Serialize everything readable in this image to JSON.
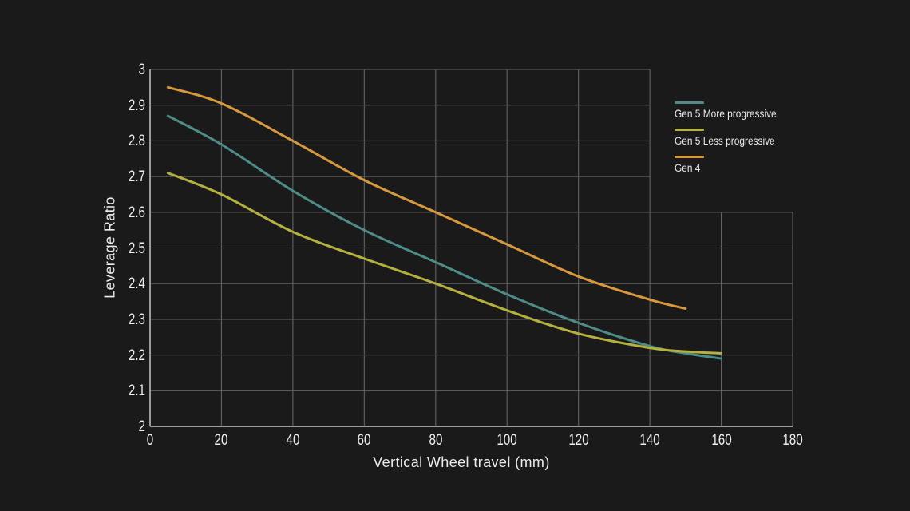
{
  "chart_data": {
    "type": "line",
    "title": "",
    "xlabel": "Vertical Wheel travel (mm)",
    "ylabel": "Leverage Ratio",
    "xlim": [
      0,
      180
    ],
    "ylim": [
      2,
      3
    ],
    "xticks": [
      {
        "v": 0,
        "label": "0"
      },
      {
        "v": 20,
        "label": "20"
      },
      {
        "v": 40,
        "label": "40"
      },
      {
        "v": 60,
        "label": "60"
      },
      {
        "v": 80,
        "label": "80"
      },
      {
        "v": 100,
        "label": "100"
      },
      {
        "v": 120,
        "label": "120"
      },
      {
        "v": 140,
        "label": "140"
      },
      {
        "v": 160,
        "label": "160"
      },
      {
        "v": 180,
        "label": "180"
      }
    ],
    "yticks": [
      {
        "v": 3,
        "label": "3"
      },
      {
        "v": 2.9,
        "label": "2.9"
      },
      {
        "v": 2.8,
        "label": "2.8"
      },
      {
        "v": 2.7,
        "label": "2.7"
      },
      {
        "v": 2.6,
        "label": "2.6"
      },
      {
        "v": 2.5,
        "label": "2.5"
      },
      {
        "v": 2.4,
        "label": "2.4"
      },
      {
        "v": 2.3,
        "label": "2.3"
      },
      {
        "v": 2.2,
        "label": "2.2"
      },
      {
        "v": 2.1,
        "label": "2.1"
      },
      {
        "v": 2,
        "label": "2"
      }
    ],
    "grid": true,
    "grid_extent": {
      "note": "grid is L-shaped: rows above 2.6 end at x=140mm; rows at 2.6 and below extend to x=180mm; columns at 160 and 180 exist only at or below 2.6",
      "upper_x_max": 140,
      "lower_x_max": 180,
      "step_y": 2.6
    },
    "legend_position": "upper-right",
    "series": [
      {
        "name": "Gen 5 More progressive",
        "color": "#4e8c87",
        "x": [
          5,
          20,
          40,
          60,
          80,
          100,
          120,
          140,
          150,
          160
        ],
        "y": [
          2.87,
          2.79,
          2.66,
          2.55,
          2.46,
          2.37,
          2.29,
          2.225,
          2.205,
          2.19
        ]
      },
      {
        "name": "Gen 5 Less progressive",
        "color": "#b5b13e",
        "x": [
          5,
          20,
          40,
          60,
          80,
          100,
          120,
          140,
          150,
          160
        ],
        "y": [
          2.71,
          2.65,
          2.545,
          2.47,
          2.4,
          2.325,
          2.26,
          2.22,
          2.21,
          2.205
        ]
      },
      {
        "name": "Gen 4",
        "color": "#d8993c",
        "x": [
          5,
          20,
          40,
          60,
          80,
          100,
          120,
          140,
          150
        ],
        "y": [
          2.95,
          2.905,
          2.8,
          2.69,
          2.6,
          2.51,
          2.42,
          2.355,
          2.33
        ]
      }
    ],
    "colors": {
      "background": "#1a1a1a",
      "gridline": "#636363",
      "spine": "#9c9c9c",
      "tick_text": "#efefef",
      "title_text": "#ececec"
    }
  }
}
